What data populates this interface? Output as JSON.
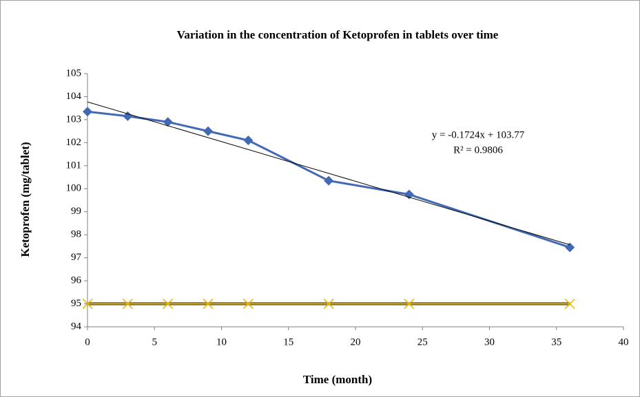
{
  "chart_data": {
    "type": "line",
    "title": "Variation in the concentration of Ketoprofen in tablets over time",
    "x_label": "Time (month)",
    "y_label": "Ketoprofen (mg/tablet)",
    "x": [
      0,
      3,
      6,
      9,
      12,
      18,
      24,
      36
    ],
    "series": [
      {
        "color": "#4169b4",
        "marker": "diamond",
        "values": [
          103.35,
          103.15,
          102.9,
          102.5,
          102.1,
          100.35,
          99.75,
          97.45
        ]
      },
      {
        "color": "#e8b800",
        "marker": "x",
        "values": [
          95,
          95,
          95,
          95,
          95,
          95,
          95,
          95
        ]
      }
    ],
    "trendline": {
      "slope": -0.1724,
      "intercept": 103.77,
      "x": [
        0,
        36
      ],
      "color": "#000000"
    },
    "annotations": [
      "y = -0.1724x + 103.77",
      "R² = 0.9806"
    ],
    "xlim": [
      0,
      40
    ],
    "xticks": [
      0,
      5,
      10,
      15,
      20,
      25,
      30,
      35,
      40
    ],
    "ylim": [
      94,
      105
    ],
    "yticks": [
      94,
      95,
      96,
      97,
      98,
      99,
      100,
      101,
      102,
      103,
      104,
      105
    ],
    "grid": false
  }
}
